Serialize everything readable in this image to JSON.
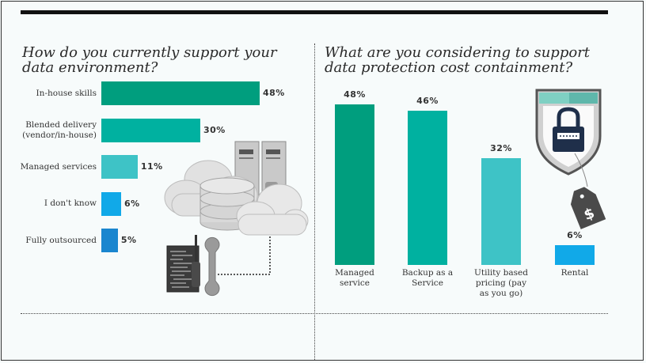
{
  "colors": {
    "dark_green": "#009e7e",
    "teal": "#00b1a0",
    "light_teal": "#3ec3c6",
    "blue": "#11a9e8",
    "dark_blue": "#1a86cf"
  },
  "chart_data": [
    {
      "type": "bar",
      "orientation": "horizontal",
      "title": "How do you currently support your data environment?",
      "categories": [
        "In-house skills",
        "Blended delivery (vendor/in-house)",
        "Managed services",
        "I don't know",
        "Fully outsourced"
      ],
      "values": [
        48,
        30,
        11,
        6,
        5
      ],
      "value_labels": [
        "48%",
        "30%",
        "11%",
        "6%",
        "5%"
      ],
      "bar_colors": [
        "#009e7e",
        "#00b1a0",
        "#3ec3c6",
        "#11a9e8",
        "#1a86cf"
      ],
      "xlim": [
        0,
        48
      ]
    },
    {
      "type": "bar",
      "orientation": "vertical",
      "title": "What are you considering to support data protection cost containment?",
      "categories": [
        "Managed service",
        "Backup as a Service",
        "Utility based pricing (pay as you go)",
        "Rental"
      ],
      "values": [
        48,
        46,
        32,
        6
      ],
      "value_labels": [
        "48%",
        "46%",
        "32%",
        "6%"
      ],
      "bar_colors": [
        "#009e7e",
        "#00b1a0",
        "#3ec3c6",
        "#11a9e8"
      ],
      "ylim": [
        0,
        48
      ]
    }
  ],
  "icons": [
    "cloud-server-icon",
    "database-icon",
    "code-document-icon",
    "wrench-icon",
    "screwdriver-icon",
    "shield-lock-icon",
    "price-tag-icon"
  ],
  "price_tag_symbol": "$"
}
